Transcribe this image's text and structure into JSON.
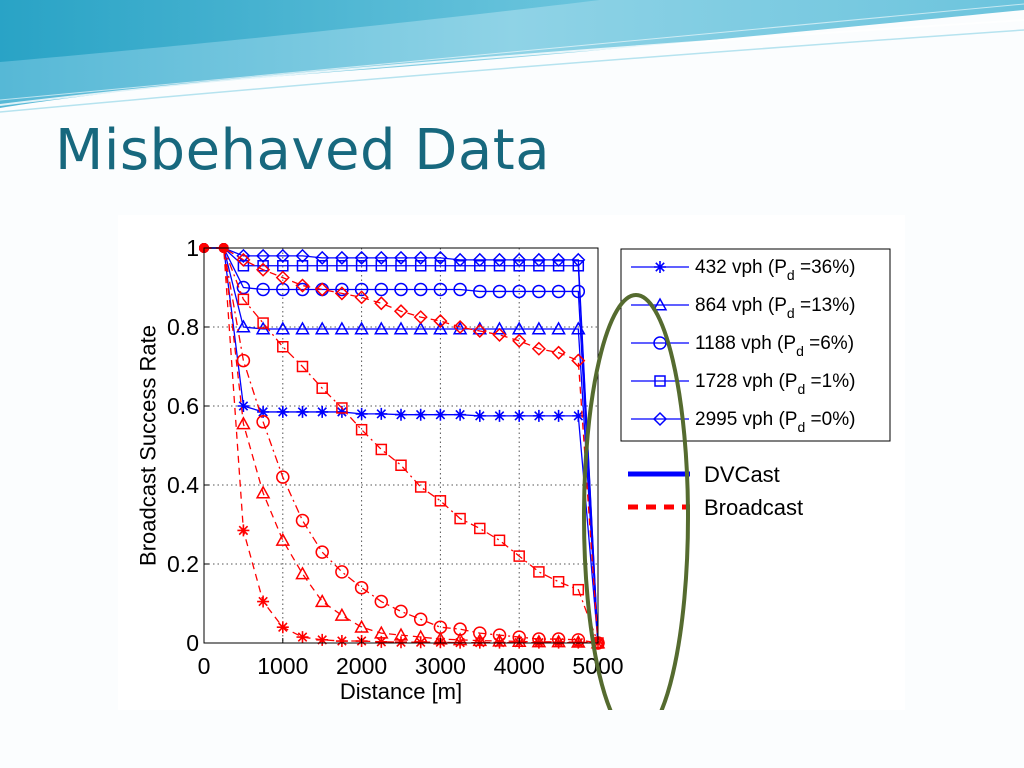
{
  "slide": {
    "title": "Misbehaved Data"
  },
  "colors": {
    "title": "#17687e",
    "header_wave_dark": "#0e8fb0",
    "header_wave_light": "#9ad8e8",
    "dvcast": "#0000ff",
    "broadcast": "#ff0000",
    "highlight_ellipse": "#556b2f"
  },
  "chart_data": {
    "type": "line",
    "xlabel": "Distance [m]",
    "ylabel": "Broadcast Success Rate",
    "xlim": [
      0,
      5000
    ],
    "ylim": [
      0,
      1
    ],
    "xticks": [
      "0",
      "1000",
      "2000",
      "3000",
      "4000",
      "5000"
    ],
    "yticks": [
      "0",
      "0.2",
      "0.4",
      "0.6",
      "0.8",
      "1"
    ],
    "grid": true,
    "legend_position": "right",
    "x": [
      0,
      250,
      500,
      750,
      1000,
      1250,
      1500,
      1750,
      2000,
      2250,
      2500,
      2750,
      3000,
      3250,
      3500,
      3750,
      4000,
      4250,
      4500,
      4750,
      5000
    ],
    "series": [
      {
        "name": "432 vph (Pd =36%)",
        "label_main": "432 vph (P",
        "label_sub": "d",
        "label_tail": " =36%)",
        "marker": "asterisk",
        "protocol": "DVCast",
        "values": [
          1,
          1,
          0.6,
          0.585,
          0.585,
          0.585,
          0.585,
          0.585,
          0.58,
          0.58,
          0.578,
          0.578,
          0.578,
          0.578,
          0.575,
          0.575,
          0.575,
          0.575,
          0.575,
          0.575,
          0.0
        ]
      },
      {
        "name": "864 vph (Pd =13%)",
        "label_main": "864 vph (P",
        "label_sub": "d",
        "label_tail": " =13%)",
        "marker": "triangle",
        "protocol": "DVCast",
        "values": [
          1,
          1,
          0.8,
          0.795,
          0.795,
          0.795,
          0.795,
          0.795,
          0.795,
          0.795,
          0.795,
          0.795,
          0.795,
          0.795,
          0.795,
          0.795,
          0.795,
          0.795,
          0.795,
          0.795,
          0.0
        ]
      },
      {
        "name": "1188 vph (Pd =6%)",
        "label_main": "1188 vph (P",
        "label_sub": "d",
        "label_tail": " =6%)",
        "marker": "circle",
        "protocol": "DVCast",
        "values": [
          1,
          1,
          0.9,
          0.895,
          0.895,
          0.895,
          0.895,
          0.895,
          0.895,
          0.895,
          0.895,
          0.895,
          0.895,
          0.895,
          0.89,
          0.89,
          0.89,
          0.89,
          0.89,
          0.89,
          0.0
        ]
      },
      {
        "name": "1728 vph (Pd =1%)",
        "label_main": "1728 vph (P",
        "label_sub": "d",
        "label_tail": " =1%)",
        "marker": "square",
        "protocol": "DVCast",
        "values": [
          1,
          1,
          0.955,
          0.955,
          0.955,
          0.955,
          0.955,
          0.955,
          0.955,
          0.955,
          0.955,
          0.955,
          0.955,
          0.955,
          0.955,
          0.955,
          0.955,
          0.955,
          0.955,
          0.955,
          0.0
        ]
      },
      {
        "name": "2995 vph (Pd =0%)",
        "label_main": "2995 vph (P",
        "label_sub": "d",
        "label_tail": " =0%)",
        "marker": "diamond",
        "protocol": "DVCast",
        "values": [
          1,
          1,
          0.98,
          0.98,
          0.98,
          0.98,
          0.975,
          0.975,
          0.975,
          0.975,
          0.975,
          0.975,
          0.975,
          0.97,
          0.97,
          0.97,
          0.97,
          0.97,
          0.97,
          0.97,
          0.0
        ]
      },
      {
        "name": "432 vph (Pd =36%)",
        "marker": "asterisk",
        "protocol": "Broadcast",
        "values": [
          1,
          1,
          0.285,
          0.105,
          0.04,
          0.015,
          0.008,
          0.005,
          0.005,
          0.003,
          0.002,
          0.002,
          0.002,
          0.001,
          0.001,
          0.001,
          0.001,
          0.001,
          0.001,
          0.001,
          0.0
        ]
      },
      {
        "name": "864 vph (Pd =13%)",
        "marker": "triangle",
        "protocol": "Broadcast",
        "values": [
          1,
          1,
          0.555,
          0.38,
          0.26,
          0.175,
          0.105,
          0.07,
          0.04,
          0.025,
          0.02,
          0.015,
          0.01,
          0.008,
          0.006,
          0.005,
          0.004,
          0.003,
          0.003,
          0.002,
          0.0
        ]
      },
      {
        "name": "1188 vph (Pd =6%)",
        "marker": "circle",
        "protocol": "Broadcast",
        "values": [
          1,
          1,
          0.715,
          0.56,
          0.42,
          0.31,
          0.23,
          0.18,
          0.14,
          0.105,
          0.08,
          0.06,
          0.04,
          0.035,
          0.025,
          0.02,
          0.015,
          0.01,
          0.01,
          0.008,
          0.0
        ]
      },
      {
        "name": "1728 vph (Pd =1%)",
        "marker": "square",
        "protocol": "Broadcast",
        "values": [
          1,
          1,
          0.87,
          0.81,
          0.75,
          0.7,
          0.645,
          0.595,
          0.54,
          0.49,
          0.45,
          0.395,
          0.36,
          0.315,
          0.29,
          0.26,
          0.22,
          0.18,
          0.155,
          0.135,
          0.0
        ]
      },
      {
        "name": "2995 vph (Pd =0%)",
        "marker": "diamond",
        "protocol": "Broadcast",
        "values": [
          1,
          1,
          0.97,
          0.945,
          0.925,
          0.905,
          0.895,
          0.885,
          0.875,
          0.86,
          0.84,
          0.825,
          0.815,
          0.8,
          0.79,
          0.78,
          0.765,
          0.745,
          0.735,
          0.715,
          0.0
        ]
      }
    ],
    "protocol_legend": [
      {
        "label": "DVCast",
        "style": "solid",
        "color": "#0000ff"
      },
      {
        "label": "Broadcast",
        "style": "dashed",
        "color": "#ff0000"
      }
    ]
  }
}
